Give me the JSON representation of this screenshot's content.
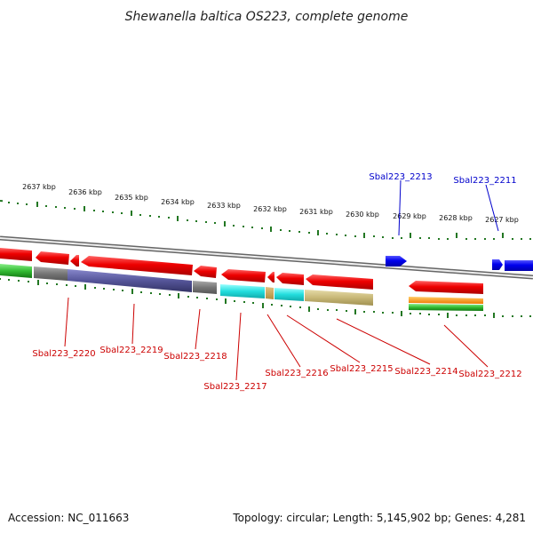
{
  "title": "Shewanella baltica OS223, complete genome",
  "footer": {
    "accession": "Accession: NC_011663",
    "summary": "Topology: circular; Length: 5,145,902 bp; Genes: 4,281"
  },
  "ruler_ticks": [
    "2637 kbp",
    "2636 kbp",
    "2635 kbp",
    "2634 kbp",
    "2633 kbp",
    "2632 kbp",
    "2631 kbp",
    "2630 kbp",
    "2629 kbp",
    "2628 kbp",
    "2627 kbp"
  ],
  "gene_labels": {
    "forward": [
      "Sbal223_2213",
      "Sbal223_2211"
    ],
    "reverse": [
      "Sbal223_2220",
      "Sbal223_2219",
      "Sbal223_2218",
      "Sbal223_2217",
      "Sbal223_2216",
      "Sbal223_2215",
      "Sbal223_2214",
      "Sbal223_2212"
    ]
  },
  "colors": {
    "forward_strand": "#0000ee",
    "reverse_strand": "#ee0000",
    "label_forward": "#0000cc",
    "label_reverse": "#cc0000",
    "tick": "#227722",
    "backbone": "#888888",
    "cog_green": "#33bb33",
    "cog_gray": "#777777",
    "cog_purple": "#555599",
    "cog_cyan": "#22dddd",
    "cog_khaki": "#c8b878",
    "cog_orange": "#ff9922"
  }
}
